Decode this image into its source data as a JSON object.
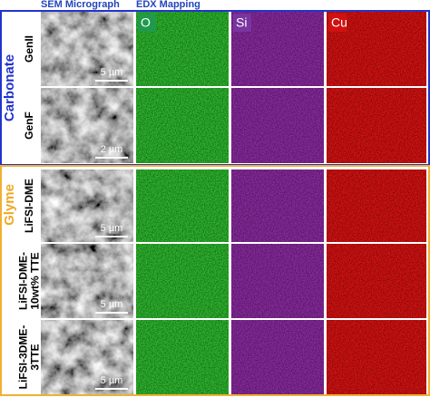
{
  "header": {
    "sem": "SEM Micrograph",
    "edx": "EDX Mapping"
  },
  "element_labels": [
    "O",
    "Si",
    "Cu"
  ],
  "groups": [
    {
      "label": "Carbonate",
      "rows": [
        {
          "name_lines": [
            "GenII"
          ],
          "scale_bar": "5 µm"
        },
        {
          "name_lines": [
            "GenF"
          ],
          "scale_bar": "2 µm"
        }
      ]
    },
    {
      "label": "Glyme",
      "rows": [
        {
          "name_lines": [
            "LiFSI-DME"
          ],
          "scale_bar": "5 µm"
        },
        {
          "name_lines": [
            "LiFSI-DME-",
            "10wt% TTE"
          ],
          "scale_bar": "5 µm"
        },
        {
          "name_lines": [
            "LiFSI-3DME-",
            "3TTE"
          ],
          "scale_bar": "5 µm"
        }
      ]
    }
  ]
}
